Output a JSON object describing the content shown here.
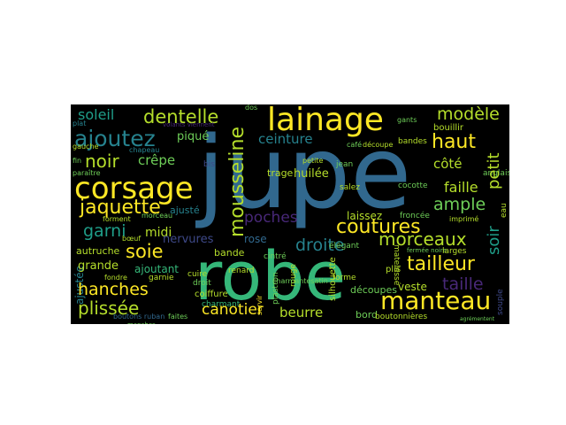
{
  "wordcloud": {
    "background": "#000000",
    "words": {
      "jupe": "jupe",
      "robe": "robe",
      "lainage": "lainage",
      "corsage": "corsage",
      "manteau": "manteau",
      "dentelle": "dentelle",
      "soleil": "soleil",
      "modele": "modèle",
      "ajoutez": "ajoutez",
      "ceinture": "ceinture",
      "haut": "haut",
      "noir": "noir",
      "crepe": "crêpe",
      "jaquette": "jaquette",
      "pique": "piqué",
      "mousseline": "mousseline",
      "coutures": "coutures",
      "ample": "ample",
      "faille": "faille",
      "cote": "côté",
      "petit": "petit",
      "poches": "poches",
      "garni": "garni",
      "midi": "midi",
      "soie": "soie",
      "morceaux": "morceaux",
      "soir": "soir",
      "droite": "droite",
      "tailleur": "tailleur",
      "taille": "taille",
      "hanches": "hanches",
      "plissee": "plissée",
      "canotier": "canotier",
      "beurre": "beurre",
      "nervures": "nervures",
      "rose": "rose",
      "bande": "bande",
      "grande": "grande",
      "ajustee": "ajustée",
      "laissez": "laissez",
      "veste": "veste",
      "decoupes": "découpes",
      "huilee": "huilée",
      "trage": "trage",
      "gants": "gants",
      "bandes": "bandes",
      "bouillir": "bouillir",
      "bord": "bord",
      "rouge": "rouge",
      "coiffure": "coiffure",
      "charmant": "charmant",
      "chapeau": "chapeau",
      "fin": "fin",
      "plat": "plat",
      "gauche": "gauche",
      "dos": "dos",
      "autruche": "autruche",
      "ajoutant": "ajoutant",
      "garnie": "garnie",
      "fondre": "fondre",
      "boutons_ruban": "boutons ruban",
      "faites": "faites",
      "ajuste": "ajusté",
      "jean": "jean",
      "salez": "salez",
      "cocotte": "cocotte",
      "froncee": "froncée",
      "imprime": "imprimé",
      "anglaise": "anglaise",
      "matelasse": "matelassé",
      "elegant": "élégant",
      "forme": "forme",
      "plis": "plis",
      "larges": "larges",
      "boutonnieres": "boutonnières",
      "cintre": "cintré",
      "cuire": "cuire",
      "droit": "droit",
      "renard": "renard",
      "bis": "bis",
      "petite": "petite",
      "cafe": "café",
      "decoupe": "découpe",
      "charmantesatin": "charmantesatin",
      "forment": "forment",
      "morceau": "morceau",
      "boeuf": "bœuf",
      "plastron": "plastron",
      "eau": "eau",
      "souple": "souple",
      "paraitre": "paraître",
      "servir": "servir",
      "silhouette": "silhouette",
      "fermee_noire": "fermée noire",
      "agrementent": "agrémentent",
      "volants_viennent": "volants viennent",
      "manches": "manches"
    },
    "colors": {
      "yellow": "#fde725",
      "yellow_green": "#b5de2b",
      "green": "#6ece58",
      "teal_green": "#35b779",
      "teal": "#1f9e89",
      "cyan_blue": "#26828e",
      "blue": "#31688e",
      "indigo": "#3e4989",
      "purple": "#482878",
      "dark_purple": "#440154"
    }
  }
}
